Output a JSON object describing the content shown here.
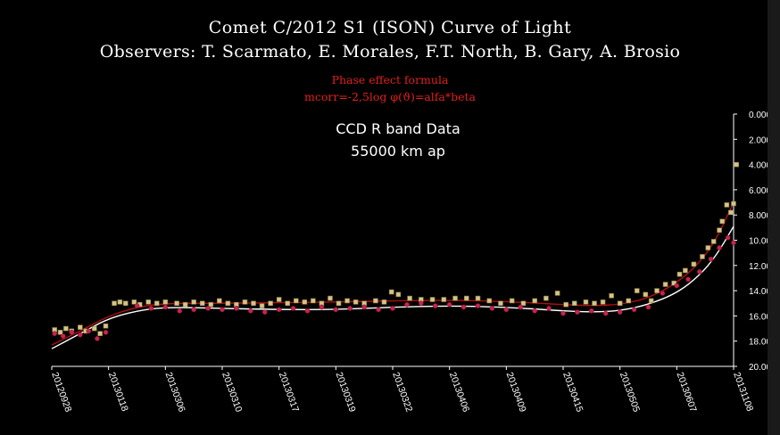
{
  "title_line1": "Comet C/2012 S1 (ISON) Curve of Light",
  "title_line2": "Observers: T. Scarmato, E. Morales, F.T. North, B. Gary, A. Brosio",
  "formula_title": "Phase effect formula",
  "formula": "mcorr=-2,5log φ(ϑ)=alfa*beta",
  "data_note": "CCD  R band Data",
  "aperture": "55000  km  ap",
  "colors": {
    "background": "#000000",
    "series_a": "#d4c48a",
    "series_b": "#c8244e",
    "fit_red": "#b01010",
    "fit_white": "#ffffff"
  },
  "chart_data": {
    "type": "scatter",
    "ylim": [
      0,
      20
    ],
    "y_inverted": true,
    "y_ticks": [
      "0.000",
      "2.000",
      "4.000",
      "6.000",
      "8.000",
      "10.000",
      "12.000",
      "14.000",
      "16.000",
      "18.000",
      "20.000"
    ],
    "x_ticks": [
      "20120928",
      "20130118",
      "20130306",
      "20130310",
      "20130317",
      "20130319",
      "20130322",
      "20130406",
      "20130409",
      "20130415",
      "20130505",
      "20130607",
      "20131108"
    ],
    "x_range": [
      0,
      12
    ],
    "series": [
      {
        "color_key": "series_a",
        "points": [
          [
            0.05,
            17.1
          ],
          [
            0.15,
            17.3
          ],
          [
            0.25,
            17.0
          ],
          [
            0.35,
            17.2
          ],
          [
            0.5,
            16.9
          ],
          [
            0.6,
            17.2
          ],
          [
            0.75,
            17.0
          ],
          [
            0.85,
            17.4
          ],
          [
            0.95,
            16.8
          ],
          [
            1.1,
            15.0
          ],
          [
            1.2,
            14.9
          ],
          [
            1.3,
            15.0
          ],
          [
            1.45,
            14.9
          ],
          [
            1.55,
            15.1
          ],
          [
            1.7,
            14.9
          ],
          [
            1.85,
            15.0
          ],
          [
            2.0,
            14.9
          ],
          [
            2.2,
            15.0
          ],
          [
            2.35,
            15.1
          ],
          [
            2.5,
            14.9
          ],
          [
            2.65,
            15.0
          ],
          [
            2.8,
            15.1
          ],
          [
            2.95,
            14.8
          ],
          [
            3.1,
            15.0
          ],
          [
            3.25,
            15.1
          ],
          [
            3.4,
            14.9
          ],
          [
            3.55,
            15.0
          ],
          [
            3.7,
            15.2
          ],
          [
            3.85,
            15.0
          ],
          [
            4.0,
            14.7
          ],
          [
            4.15,
            15.0
          ],
          [
            4.3,
            14.8
          ],
          [
            4.45,
            14.9
          ],
          [
            4.6,
            14.8
          ],
          [
            4.75,
            15.0
          ],
          [
            4.9,
            14.6
          ],
          [
            5.05,
            15.0
          ],
          [
            5.2,
            14.8
          ],
          [
            5.35,
            14.9
          ],
          [
            5.5,
            15.0
          ],
          [
            5.7,
            14.8
          ],
          [
            5.85,
            14.9
          ],
          [
            5.98,
            14.1
          ],
          [
            6.1,
            14.3
          ],
          [
            6.3,
            14.6
          ],
          [
            6.5,
            14.7
          ],
          [
            6.7,
            14.7
          ],
          [
            6.9,
            14.7
          ],
          [
            7.1,
            14.6
          ],
          [
            7.3,
            14.6
          ],
          [
            7.5,
            14.6
          ],
          [
            7.7,
            14.8
          ],
          [
            7.9,
            15.0
          ],
          [
            8.1,
            14.8
          ],
          [
            8.3,
            15.0
          ],
          [
            8.5,
            14.8
          ],
          [
            8.7,
            14.6
          ],
          [
            8.9,
            14.2
          ],
          [
            9.05,
            15.1
          ],
          [
            9.2,
            15.0
          ],
          [
            9.4,
            14.9
          ],
          [
            9.55,
            15.0
          ],
          [
            9.7,
            14.9
          ],
          [
            9.85,
            14.4
          ],
          [
            10.0,
            15.0
          ],
          [
            10.15,
            14.8
          ],
          [
            10.3,
            14.0
          ],
          [
            10.45,
            14.3
          ],
          [
            10.55,
            14.8
          ],
          [
            10.65,
            14.0
          ],
          [
            10.8,
            13.5
          ],
          [
            10.95,
            13.4
          ],
          [
            11.05,
            12.7
          ],
          [
            11.15,
            12.4
          ],
          [
            11.3,
            11.9
          ],
          [
            11.45,
            11.3
          ],
          [
            11.55,
            10.6
          ],
          [
            11.65,
            10.1
          ],
          [
            11.75,
            9.2
          ],
          [
            11.8,
            8.5
          ],
          [
            11.88,
            7.2
          ],
          [
            11.95,
            7.8
          ],
          [
            12.0,
            7.1
          ],
          [
            12.05,
            4.0
          ]
        ]
      },
      {
        "color_key": "series_b",
        "points": [
          [
            0.05,
            17.4
          ],
          [
            0.2,
            17.6
          ],
          [
            0.35,
            17.3
          ],
          [
            0.5,
            17.5
          ],
          [
            0.65,
            17.2
          ],
          [
            0.8,
            17.8
          ],
          [
            0.95,
            17.3
          ],
          [
            1.5,
            15.2
          ],
          [
            1.75,
            15.4
          ],
          [
            2.0,
            15.3
          ],
          [
            2.25,
            15.6
          ],
          [
            2.5,
            15.5
          ],
          [
            2.75,
            15.4
          ],
          [
            3.0,
            15.5
          ],
          [
            3.25,
            15.4
          ],
          [
            3.5,
            15.6
          ],
          [
            3.75,
            15.7
          ],
          [
            4.0,
            15.5
          ],
          [
            4.25,
            15.4
          ],
          [
            4.5,
            15.6
          ],
          [
            4.75,
            15.3
          ],
          [
            5.0,
            15.5
          ],
          [
            5.25,
            15.4
          ],
          [
            5.5,
            15.3
          ],
          [
            5.75,
            15.5
          ],
          [
            6.0,
            15.4
          ],
          [
            6.25,
            15.1
          ],
          [
            6.5,
            15.0
          ],
          [
            6.75,
            15.2
          ],
          [
            7.0,
            15.1
          ],
          [
            7.25,
            15.3
          ],
          [
            7.5,
            15.2
          ],
          [
            7.75,
            15.4
          ],
          [
            8.0,
            15.5
          ],
          [
            8.25,
            15.3
          ],
          [
            8.5,
            15.6
          ],
          [
            8.75,
            15.4
          ],
          [
            9.0,
            15.8
          ],
          [
            9.25,
            15.7
          ],
          [
            9.5,
            15.6
          ],
          [
            9.75,
            15.8
          ],
          [
            10.0,
            15.7
          ],
          [
            10.25,
            15.5
          ],
          [
            10.5,
            15.3
          ],
          [
            10.75,
            14.2
          ],
          [
            11.0,
            13.6
          ],
          [
            11.2,
            13.1
          ],
          [
            11.4,
            12.5
          ],
          [
            11.6,
            11.5
          ],
          [
            11.75,
            10.6
          ],
          [
            11.9,
            9.8
          ],
          [
            12.0,
            10.2
          ]
        ]
      }
    ],
    "fits": [
      {
        "color_key": "fit_red",
        "points": [
          [
            0.0,
            18.3
          ],
          [
            0.5,
            17.2
          ],
          [
            1.0,
            16.0
          ],
          [
            1.5,
            15.3
          ],
          [
            2.0,
            15.0
          ],
          [
            3.0,
            15.0
          ],
          [
            4.0,
            14.95
          ],
          [
            5.0,
            14.9
          ],
          [
            6.0,
            14.8
          ],
          [
            7.0,
            14.75
          ],
          [
            8.0,
            14.85
          ],
          [
            9.0,
            15.1
          ],
          [
            9.5,
            15.2
          ],
          [
            10.0,
            15.1
          ],
          [
            10.5,
            14.6
          ],
          [
            11.0,
            13.4
          ],
          [
            11.4,
            11.8
          ],
          [
            11.7,
            9.9
          ],
          [
            12.0,
            7.0
          ]
        ]
      },
      {
        "color_key": "fit_white",
        "points": [
          [
            0.0,
            18.6
          ],
          [
            0.5,
            17.4
          ],
          [
            1.0,
            16.2
          ],
          [
            1.5,
            15.6
          ],
          [
            2.0,
            15.3
          ],
          [
            3.0,
            15.4
          ],
          [
            4.0,
            15.5
          ],
          [
            5.0,
            15.5
          ],
          [
            6.0,
            15.3
          ],
          [
            7.0,
            15.2
          ],
          [
            8.0,
            15.3
          ],
          [
            9.0,
            15.6
          ],
          [
            9.5,
            15.7
          ],
          [
            10.0,
            15.6
          ],
          [
            10.5,
            15.1
          ],
          [
            11.0,
            14.2
          ],
          [
            11.4,
            12.8
          ],
          [
            11.7,
            11.2
          ],
          [
            12.0,
            8.9
          ]
        ]
      }
    ]
  }
}
